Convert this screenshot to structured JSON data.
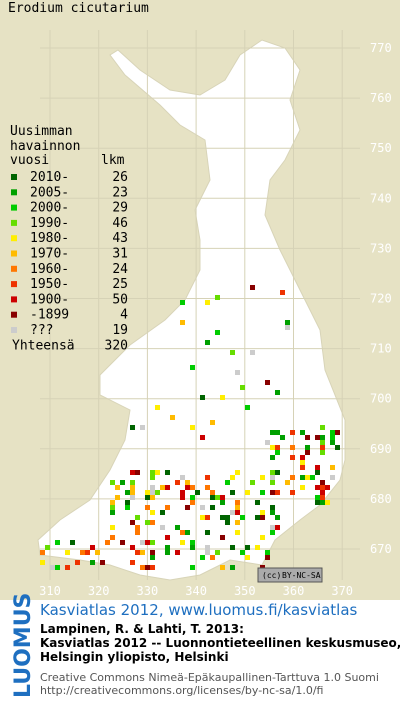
{
  "map": {
    "title": "Erodium cicutarium",
    "legend": {
      "heading": [
        "Uusimman",
        "havainnon"
      ],
      "col_year": "vuosi",
      "col_count": "lkm",
      "items": [
        {
          "label": "2010-",
          "count": "26",
          "color": "#006400"
        },
        {
          "label": "2005-",
          "count": "23",
          "color": "#00a000"
        },
        {
          "label": "2000-",
          "count": "29",
          "color": "#00cc00"
        },
        {
          "label": "1990-",
          "count": "46",
          "color": "#66dd00"
        },
        {
          "label": "1980-",
          "count": "43",
          "color": "#ffee00"
        },
        {
          "label": "1970-",
          "count": "31",
          "color": "#ffbb00"
        },
        {
          "label": "1960-",
          "count": "24",
          "color": "#ff7700"
        },
        {
          "label": "1950-",
          "count": "25",
          "color": "#ee3300"
        },
        {
          "label": "1900-",
          "count": "50",
          "color": "#cc0000"
        },
        {
          "label": "-1899",
          "count": "4",
          "color": "#880000"
        },
        {
          "label": "???",
          "count": "19",
          "color": "#cccccc"
        }
      ],
      "total_label": "Yhteensä",
      "total": "320"
    },
    "xticks": [
      310,
      320,
      330,
      340,
      350,
      360,
      370
    ],
    "yticks": [
      670,
      680,
      690,
      700,
      710,
      720,
      730,
      740,
      750,
      760,
      770
    ],
    "license_badge": [
      "(cc)",
      "BY-NC-SA"
    ]
  },
  "footer": {
    "logo": "LUOMUS",
    "link": "Kasviatlas 2012, www.luomus.fi/kasviatlas",
    "citation": [
      "Lampinen, R. & Lahti, T. 2013:",
      "Kasviatlas 2012 -- Luonnontieteellinen keskusmuseo,",
      "Helsingin yliopisto, Helsinki"
    ],
    "license": [
      "Creative Commons Nimeä-Epäkaupallinen-Tarttuva 1.0 Suomi",
      "http://creativecommons.org/licenses/by-nc-sa/1.0/fi"
    ]
  }
}
